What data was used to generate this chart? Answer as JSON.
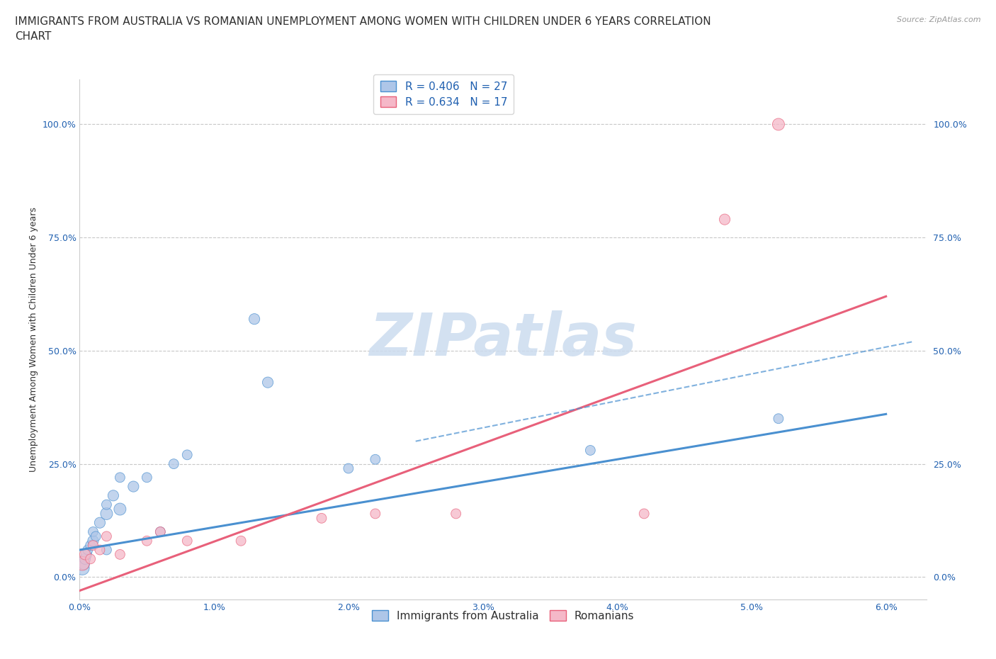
{
  "title": "IMMIGRANTS FROM AUSTRALIA VS ROMANIAN UNEMPLOYMENT AMONG WOMEN WITH CHILDREN UNDER 6 YEARS CORRELATION\nCHART",
  "source": "Source: ZipAtlas.com",
  "ylabel": "Unemployment Among Women with Children Under 6 years",
  "xlim": [
    0.0,
    0.063
  ],
  "ylim": [
    -0.05,
    1.1
  ],
  "xticks": [
    0.0,
    0.01,
    0.02,
    0.03,
    0.04,
    0.05,
    0.06
  ],
  "xticklabels": [
    "0.0%",
    "1.0%",
    "2.0%",
    "3.0%",
    "4.0%",
    "5.0%",
    "6.0%"
  ],
  "yticks": [
    0.0,
    0.25,
    0.5,
    0.75,
    1.0
  ],
  "yticklabels": [
    "0.0%",
    "25.0%",
    "50.0%",
    "75.0%",
    "100.0%"
  ],
  "blue_color": "#aec6e8",
  "pink_color": "#f5b8c8",
  "line_blue": "#4a90d0",
  "line_pink": "#e8607a",
  "blue_R": 0.406,
  "blue_N": 27,
  "pink_R": 0.634,
  "pink_N": 17,
  "background_color": "#ffffff",
  "grid_color": "#c8c8c8",
  "watermark": "ZIPatlas",
  "watermark_color": "#ccdcef",
  "blue_scatter_x": [
    0.0002,
    0.0003,
    0.0004,
    0.0005,
    0.0006,
    0.0008,
    0.001,
    0.001,
    0.0012,
    0.0015,
    0.002,
    0.002,
    0.002,
    0.0025,
    0.003,
    0.003,
    0.004,
    0.005,
    0.006,
    0.007,
    0.008,
    0.013,
    0.014,
    0.02,
    0.022,
    0.038,
    0.052
  ],
  "blue_scatter_y": [
    0.02,
    0.03,
    0.04,
    0.05,
    0.06,
    0.07,
    0.08,
    0.1,
    0.09,
    0.12,
    0.14,
    0.16,
    0.06,
    0.18,
    0.15,
    0.22,
    0.2,
    0.22,
    0.1,
    0.25,
    0.27,
    0.57,
    0.43,
    0.24,
    0.26,
    0.28,
    0.35
  ],
  "blue_scatter_sizes": [
    200,
    150,
    120,
    120,
    100,
    100,
    120,
    100,
    100,
    120,
    150,
    100,
    100,
    120,
    150,
    100,
    120,
    100,
    100,
    100,
    100,
    120,
    120,
    100,
    100,
    100,
    100
  ],
  "pink_scatter_x": [
    0.0002,
    0.0004,
    0.0008,
    0.001,
    0.0015,
    0.002,
    0.003,
    0.005,
    0.006,
    0.008,
    0.012,
    0.018,
    0.022,
    0.028,
    0.042,
    0.048,
    0.052
  ],
  "pink_scatter_y": [
    0.03,
    0.05,
    0.04,
    0.07,
    0.06,
    0.09,
    0.05,
    0.08,
    0.1,
    0.08,
    0.08,
    0.13,
    0.14,
    0.14,
    0.14,
    0.79,
    1.0
  ],
  "pink_scatter_sizes": [
    200,
    120,
    100,
    100,
    100,
    100,
    100,
    100,
    100,
    100,
    100,
    100,
    100,
    100,
    100,
    120,
    150
  ],
  "blue_trend_x0": 0.0,
  "blue_trend_y0": 0.06,
  "blue_trend_x1": 0.06,
  "blue_trend_y1": 0.36,
  "pink_trend_x0": 0.0,
  "pink_trend_y0": -0.03,
  "pink_trend_x1": 0.06,
  "pink_trend_y1": 0.62,
  "dash_trend_x0": 0.025,
  "dash_trend_y0": 0.3,
  "dash_trend_x1": 0.062,
  "dash_trend_y1": 0.52,
  "title_fontsize": 11,
  "axis_label_fontsize": 9,
  "tick_fontsize": 9,
  "legend_fontsize": 11,
  "text_color_blue": "#2060b0",
  "text_color_dark": "#303030",
  "legend_text_color": "#2060b0"
}
